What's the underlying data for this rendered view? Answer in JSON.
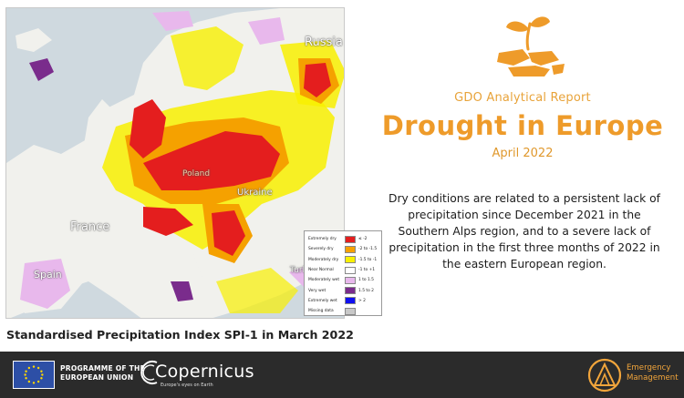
{
  "map": {
    "places": {
      "russia": "Russia",
      "ukraine": "Ukraine",
      "poland": "Poland",
      "france": "France",
      "spain": "Spain",
      "turkey": "Turkey"
    },
    "caption": "Standardised Precipitation Index SPI-1 in March 2022",
    "legend": [
      {
        "label": "Extremely dry",
        "range": "≤ -2",
        "color": "#e41e1e"
      },
      {
        "label": "Severely dry",
        "range": "-2 to -1.5",
        "color": "#f5a100"
      },
      {
        "label": "Moderately dry",
        "range": "-1.5 to -1",
        "color": "#f8f000"
      },
      {
        "label": "Near Normal",
        "range": "-1 to +1",
        "color": "#ffffff"
      },
      {
        "label": "Moderately wet",
        "range": "1 to 1.5",
        "color": "#e8b8ec"
      },
      {
        "label": "Very wet",
        "range": "1.5 to 2",
        "color": "#7a2c8c"
      },
      {
        "label": "Extremely wet",
        "range": "> 2",
        "color": "#1010f0"
      },
      {
        "label": "Missing data",
        "range": "",
        "color": "#c8c8c8"
      }
    ]
  },
  "report": {
    "subtitle": "GDO Analytical Report",
    "title": "Drought in Europe",
    "date": "April 2022",
    "summary": "Dry conditions are related to a persistent lack of precipitation since December 2021 in the Southern Alps region, and to a severe lack of precipitation in the first three months of 2022 in the eastern European region."
  },
  "footer": {
    "eu_line1": "PROGRAMME OF THE",
    "eu_line2": "EUROPEAN UNION",
    "copernicus": "Copernicus",
    "copernicus_tag": "Europe's eyes on Earth",
    "em_line1": "Emergency",
    "em_line2": "Management"
  },
  "colors": {
    "accent": "#ee9b2a",
    "footer_bg": "#2b2b2b",
    "sea": "#cfd9df",
    "land": "#f1f1ed"
  }
}
